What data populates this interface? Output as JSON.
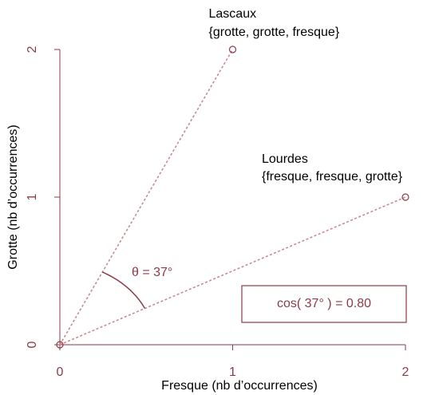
{
  "chart_data": {
    "type": "scatter",
    "xlabel": "Fresque (nb d’occurrences)",
    "ylabel": "Grotte (nb d’occurrences)",
    "points": [
      {
        "x": 0,
        "y": 0
      },
      {
        "x": 1,
        "y": 2,
        "name": "Lascaux",
        "words": "{grotte, grotte, fresque}"
      },
      {
        "x": 2,
        "y": 1,
        "name": "Lourdes",
        "words": "{fresque, fresque, grotte}"
      }
    ],
    "color": "#8b3a47",
    "line_color": "#c98a93",
    "xlim": [
      0,
      2
    ],
    "ylim": [
      0,
      2
    ],
    "xticks": [
      0,
      1,
      2
    ],
    "yticks": [
      0,
      1,
      2
    ],
    "angle_label": "θ = 37°",
    "cos_label": "cos( 37° ) = 0.80"
  }
}
